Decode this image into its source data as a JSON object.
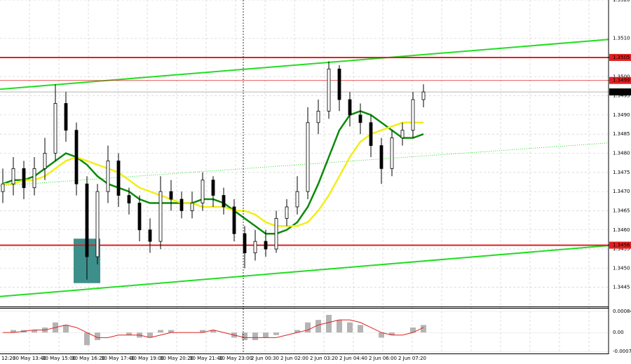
{
  "chart_data": {
    "type": "candlestick",
    "ylim": [
      1.344,
      1.352
    ],
    "yticks": [
      1.3445,
      {
        "value": 1.345,
        "label": "1.3450"
      },
      1.3455,
      {
        "value": 1.346,
        "label": "1.3460"
      },
      1.3465,
      {
        "value": 1.347,
        "label": "1.3470"
      },
      1.3475,
      {
        "value": 1.348,
        "label": "1.3480"
      },
      1.3485,
      {
        "value": 1.349,
        "label": "1.3490"
      },
      1.3495,
      {
        "value": 1.35,
        "label": "1.3500"
      },
      {
        "value": 1.351,
        "label": "1.3510"
      },
      {
        "value": 1.352,
        "label": "1.3520"
      }
    ],
    "grid": true,
    "x_labels": [
      "12:20",
      "30 May 13:40",
      "30 May 15:00",
      "30 May 16:20",
      "30 May 17:40",
      "30 May 19:00",
      "30 May 20:20",
      "30 May 21:40",
      "30 May 23:00",
      "2 Jun 00:30",
      "2 Jun 02:00",
      "2 Jun 03:20",
      "2 Jun 04:40",
      "2 Jun 06:00",
      "2 Jun 07:20"
    ],
    "candle_color": "#000000",
    "open": [
      1.347,
      1.3472,
      1.3476,
      1.3471,
      1.3476,
      1.348,
      1.3493,
      1.3486,
      1.3472,
      1.3453,
      1.347,
      1.3478,
      1.3469,
      1.3467,
      1.346,
      1.3457,
      1.347,
      1.3468,
      1.3465,
      1.3467,
      1.3473,
      1.3469,
      1.3466,
      1.3459,
      1.3454,
      1.3457,
      1.3455,
      1.3463,
      1.3466,
      1.347,
      1.3488,
      1.3491,
      1.3502,
      1.3494,
      1.349,
      1.3488,
      1.3482,
      1.3476,
      1.3484,
      1.3486,
      1.3494
    ],
    "high": [
      1.3476,
      1.3479,
      1.3478,
      1.3479,
      1.3484,
      1.3498,
      1.3496,
      1.3488,
      1.3474,
      1.3472,
      1.3482,
      1.348,
      1.3471,
      1.3469,
      1.3463,
      1.3474,
      1.3473,
      1.347,
      1.347,
      1.3475,
      1.3474,
      1.3471,
      1.3468,
      1.3461,
      1.346,
      1.346,
      1.3465,
      1.3468,
      1.3474,
      1.3492,
      1.3494,
      1.3504,
      1.3503,
      1.3496,
      1.3493,
      1.349,
      1.3484,
      1.3486,
      1.3488,
      1.3496,
      1.3498
    ],
    "low": [
      1.3467,
      1.3469,
      1.3468,
      1.3469,
      1.3473,
      1.3478,
      1.3483,
      1.3469,
      1.3447,
      1.3451,
      1.3467,
      1.3466,
      1.3464,
      1.3457,
      1.3454,
      1.3455,
      1.3465,
      1.3463,
      1.3463,
      1.3465,
      1.3466,
      1.3464,
      1.3457,
      1.345,
      1.3452,
      1.3453,
      1.3454,
      1.3461,
      1.3464,
      1.3468,
      1.3485,
      1.3489,
      1.3491,
      1.3487,
      1.3485,
      1.3479,
      1.3472,
      1.3474,
      1.3482,
      1.3484,
      1.3492
    ],
    "close": [
      1.3472,
      1.3476,
      1.3471,
      1.3476,
      1.348,
      1.3493,
      1.3486,
      1.3472,
      1.3453,
      1.347,
      1.3478,
      1.3469,
      1.3467,
      1.346,
      1.3457,
      1.347,
      1.3468,
      1.3465,
      1.3467,
      1.3473,
      1.3469,
      1.3466,
      1.3459,
      1.3454,
      1.3457,
      1.3455,
      1.3463,
      1.3466,
      1.347,
      1.3488,
      1.3491,
      1.3502,
      1.3494,
      1.349,
      1.3488,
      1.3482,
      1.3476,
      1.3484,
      1.3486,
      1.3494,
      1.3496
    ],
    "series": [
      {
        "color": "#0a8a0a",
        "values": [
          1.3472,
          1.3473,
          1.3473,
          1.3474,
          1.3476,
          1.3478,
          1.348,
          1.3479,
          1.3477,
          1.3474,
          1.3472,
          1.3471,
          1.347,
          1.3468,
          1.3467,
          1.3467,
          1.3467,
          1.3467,
          1.3467,
          1.3468,
          1.3468,
          1.3467,
          1.3465,
          1.3463,
          1.3461,
          1.3459,
          1.3459,
          1.346,
          1.3462,
          1.3466,
          1.3472,
          1.3479,
          1.3486,
          1.349,
          1.3491,
          1.349,
          1.3488,
          1.3486,
          1.3484,
          1.3484,
          1.3485
        ]
      },
      {
        "color": "#f2ee1a",
        "values": [
          1.3472,
          1.3472,
          1.3473,
          1.3473,
          1.3474,
          1.3476,
          1.3478,
          1.3479,
          1.3478,
          1.3477,
          1.3476,
          1.3475,
          1.3473,
          1.3471,
          1.347,
          1.3469,
          1.3468,
          1.3467,
          1.3467,
          1.3466,
          1.3466,
          1.3466,
          1.3465,
          1.3465,
          1.3464,
          1.3462,
          1.3461,
          1.3461,
          1.3461,
          1.3462,
          1.3465,
          1.3469,
          1.3474,
          1.3479,
          1.3483,
          1.3485,
          1.3486,
          1.3487,
          1.3488,
          1.3488,
          1.3488
        ]
      }
    ],
    "levels": [
      {
        "value": 1.3505,
        "color": "#e02020"
      },
      {
        "value": 1.3456,
        "color": "#e02020"
      }
    ],
    "ask_line": 1.3499,
    "bid": 1.3496,
    "trendlines": [
      {
        "color": "#22dd22",
        "dashed": false,
        "start": 1.34967,
        "end": 1.35097
      },
      {
        "color": "#22dd22",
        "dashed": false,
        "start": 1.34426,
        "end": 1.34559
      },
      {
        "color": "#22dd22",
        "dashed": true,
        "start": 1.34715,
        "end": 1.34827
      }
    ],
    "box": {
      "color": "#3d8f8c",
      "top": 1.34577,
      "bottom": 1.34461
    },
    "macd": {
      "ylim": [
        -0.0008,
        0.00092
      ],
      "yticks": [
        0.00084,
        {
          "value": 0,
          "label": "0.00"
        },
        -0.00075
      ],
      "histogram_color": "#b4b4b4",
      "signal_color": "#e02020",
      "histogram": [
        0.0,
        0.0001,
        0.0001,
        0.0001,
        0.0002,
        0.0004,
        0.0003,
        0.0,
        -0.0005,
        -0.0003,
        0.0,
        0.0,
        -0.0001,
        -0.0002,
        -0.0002,
        0.0001,
        0.0001,
        0.0,
        0.0,
        0.0001,
        0.0001,
        0.0,
        -0.0002,
        -0.0003,
        -0.0003,
        -0.0002,
        -0.0001,
        0.0,
        0.0001,
        0.0004,
        0.0005,
        0.0007,
        0.0005,
        0.0004,
        0.0003,
        0.0,
        -0.0002,
        -0.0001,
        0.0,
        0.0002,
        0.0003
      ],
      "signal": [
        0.0,
        0.0,
        5e-05,
        0.0001,
        0.0001,
        0.0002,
        0.0003,
        0.0002,
        0.0,
        -0.0002,
        -0.0002,
        -0.0001,
        -0.0001,
        -0.0001,
        -0.0002,
        -0.0001,
        0.0,
        0.0,
        0.0,
        0.0,
        0.0001,
        0.0,
        -0.0001,
        -0.0002,
        -0.0002,
        -0.0002,
        -0.0002,
        -0.0001,
        0.0,
        0.0001,
        0.0003,
        0.0004,
        0.0005,
        0.0005,
        0.0004,
        0.0002,
        0.0,
        -0.0001,
        -0.0001,
        0.0,
        0.0002
      ]
    }
  }
}
